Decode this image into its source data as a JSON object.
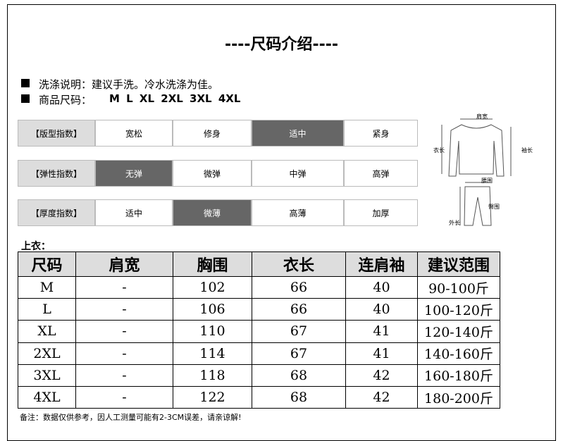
{
  "title": "----尺码介绍----",
  "wash": "洗涤说明：建议手洗。冷水洗涤为佳。",
  "sizes": {
    "label": "商品尺码：",
    "value": "M L XL 2XL 3XL 4XL"
  },
  "indices": [
    {
      "label": "【版型指数】",
      "options": [
        "宽松",
        "修身",
        "适中",
        "紧身"
      ],
      "selected": 2
    },
    {
      "label": "【弹性指数】",
      "options": [
        "无弹",
        "微弹",
        "中弹",
        "高弹"
      ],
      "selected": 0
    },
    {
      "label": "【厚度指数】",
      "options": [
        "适中",
        "微薄",
        "高薄",
        "加厚"
      ],
      "selected": 1
    }
  ],
  "diagram": {
    "shoulder": "肩宽",
    "length": "衣长",
    "sleeve": "袖长",
    "waist": "腰围",
    "hip": "臀围",
    "outer": "外长"
  },
  "table": {
    "caption": "上衣：",
    "header": [
      "尺码",
      "肩宽",
      "胸围",
      "衣长",
      "连肩袖",
      "建议范围"
    ],
    "rows": [
      [
        "M",
        "-",
        102,
        66,
        40,
        "90-100斤"
      ],
      [
        "L",
        "-",
        106,
        66,
        40,
        "100-120斤"
      ],
      [
        "XL",
        "-",
        110,
        67,
        41,
        "120-140斤"
      ],
      [
        "2XL",
        "-",
        114,
        67,
        41,
        "140-160斤"
      ],
      [
        "3XL",
        "-",
        118,
        68,
        42,
        "160-180斤"
      ],
      [
        "4XL",
        "-",
        122,
        68,
        42,
        "180-200斤"
      ]
    ]
  },
  "footer": "备注：数据仅供参考，因人工测量可能有2-3CM误差，请亲谅解!"
}
